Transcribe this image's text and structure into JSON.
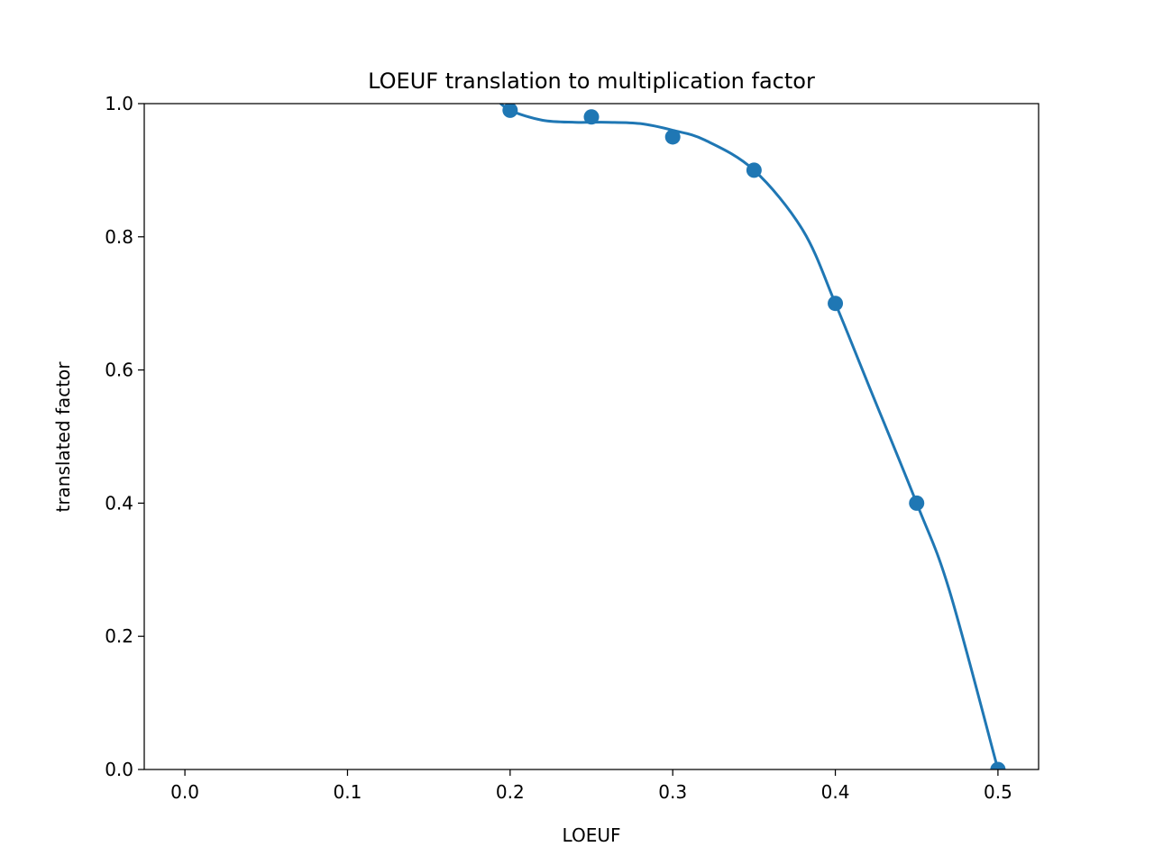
{
  "chart_data": {
    "type": "line",
    "title": "LOEUF translation to multiplication factor",
    "xlabel": "LOEUF",
    "ylabel": "translated factor",
    "xlim": [
      -0.025,
      0.525
    ],
    "ylim": [
      0.0,
      1.0
    ],
    "xticks": [
      "0.0",
      "0.1",
      "0.2",
      "0.3",
      "0.4",
      "0.5"
    ],
    "yticks": [
      "0.0",
      "0.2",
      "0.4",
      "0.6",
      "0.8",
      "1.0"
    ],
    "grid": false,
    "color": "#1f77b4",
    "series": [
      {
        "kind": "scatter",
        "x": [
          0.2,
          0.25,
          0.3,
          0.35,
          0.4,
          0.45,
          0.5
        ],
        "y": [
          0.99,
          0.98,
          0.95,
          0.9,
          0.7,
          0.4,
          0.0
        ]
      },
      {
        "kind": "line",
        "x": [
          0.19,
          0.2,
          0.22,
          0.24,
          0.25,
          0.26,
          0.28,
          0.3,
          0.32,
          0.35,
          0.38,
          0.4,
          0.42,
          0.45,
          0.47,
          0.5
        ],
        "y": [
          1.01,
          0.99,
          0.975,
          0.972,
          0.972,
          0.972,
          0.97,
          0.96,
          0.945,
          0.9,
          0.81,
          0.7,
          0.58,
          0.4,
          0.27,
          0.0
        ]
      }
    ]
  }
}
